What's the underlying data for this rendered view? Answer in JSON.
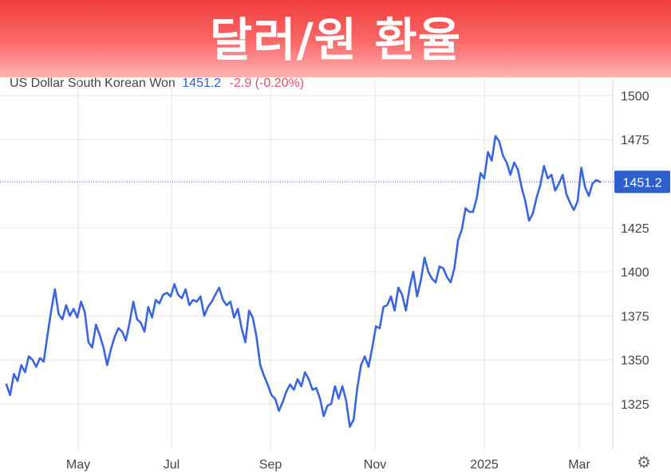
{
  "banner": {
    "title": "달러/원 환율"
  },
  "header": {
    "name": "US Dollar South Korean Won",
    "price": "1451.2",
    "change": "-2.9 (-0.20%)"
  },
  "colors": {
    "line": "#3a66dd",
    "price_label_bg": "#2f5fcf",
    "grid": "#e6e6e6",
    "negative": "#e0506a"
  },
  "icons": {
    "settings": "gear-icon"
  },
  "chart_data": {
    "type": "line",
    "series": [
      {
        "name": "US Dollar South Korean Won",
        "values": [
          1336,
          1330,
          1342,
          1338,
          1347,
          1343,
          1352,
          1350,
          1346,
          1351,
          1349,
          1364,
          1378,
          1390,
          1376,
          1373,
          1381,
          1375,
          1379,
          1374,
          1383,
          1377,
          1360,
          1357,
          1370,
          1364,
          1357,
          1347,
          1356,
          1363,
          1368,
          1366,
          1361,
          1371,
          1383,
          1373,
          1371,
          1366,
          1380,
          1374,
          1384,
          1382,
          1387,
          1388,
          1386,
          1393,
          1387,
          1385,
          1390,
          1381,
          1384,
          1383,
          1386,
          1375,
          1380,
          1383,
          1387,
          1391,
          1384,
          1381,
          1383,
          1374,
          1379,
          1368,
          1360,
          1378,
          1374,
          1363,
          1347,
          1341,
          1336,
          1330,
          1328,
          1321,
          1326,
          1332,
          1336,
          1333,
          1339,
          1335,
          1343,
          1339,
          1333,
          1334,
          1328,
          1318,
          1324,
          1325,
          1335,
          1328,
          1335,
          1327,
          1312,
          1316,
          1334,
          1347,
          1352,
          1346,
          1357,
          1369,
          1368,
          1380,
          1381,
          1386,
          1378,
          1391,
          1387,
          1378,
          1391,
          1400,
          1386,
          1395,
          1408,
          1400,
          1396,
          1394,
          1403,
          1402,
          1397,
          1394,
          1402,
          1418,
          1424,
          1436,
          1434,
          1434,
          1442,
          1456,
          1453,
          1468,
          1463,
          1477,
          1474,
          1466,
          1462,
          1455,
          1462,
          1458,
          1448,
          1440,
          1429,
          1433,
          1442,
          1449,
          1460,
          1453,
          1455,
          1446,
          1450,
          1455,
          1444,
          1439,
          1435,
          1440,
          1459,
          1448,
          1443,
          1450,
          1452,
          1451
        ]
      }
    ],
    "x_tick_labels": [
      "May",
      "Jul",
      "Sep",
      "Nov",
      "2025",
      "Mar"
    ],
    "y_ticks": [
      1325,
      1350,
      1375,
      1400,
      1425,
      1475,
      1500
    ],
    "last_value_label": "1451.2",
    "ylim": [
      1300,
      1505
    ],
    "grid": true,
    "axis_side": "right"
  }
}
